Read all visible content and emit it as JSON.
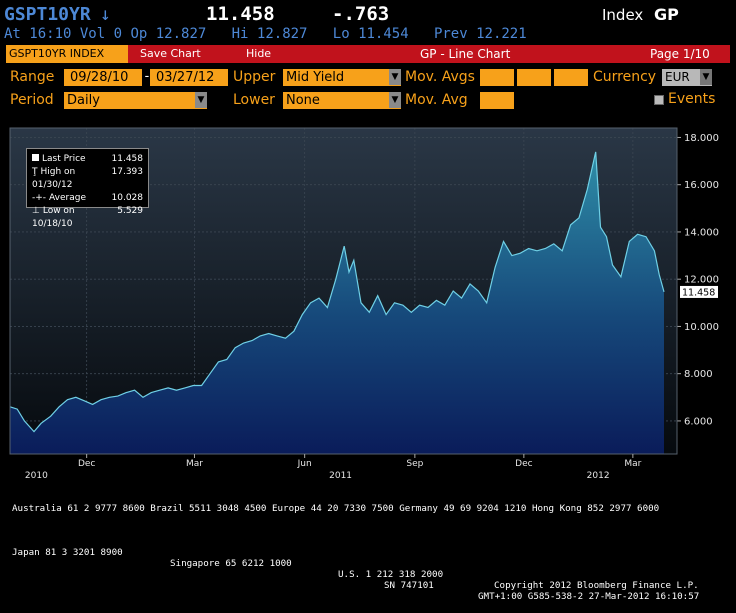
{
  "header": {
    "ticker": "GSPT10YR",
    "arrow": "↓",
    "price": "11.458",
    "change": "-.763",
    "index_label": "Index",
    "index_code": "GP",
    "at": "At 16:10",
    "vol": "Vol 0",
    "op": "Op 12.827",
    "hi": "Hi 12.827",
    "lo": "Lo 11.454",
    "prev": "Prev 12.221"
  },
  "toolbar": {
    "security": "GSPT10YR INDEX",
    "save_chart": "Save Chart",
    "hide": "Hide",
    "title": "GP - Line Chart",
    "page": "Page 1/10"
  },
  "controls": {
    "range_label": "Range",
    "range_start": "09/28/10",
    "range_sep": "-",
    "range_end": "03/27/12",
    "upper_label": "Upper",
    "upper_value": "Mid Yield",
    "mov_avgs_label": "Mov. Avgs",
    "currency_label": "Currency",
    "currency_value": "EUR",
    "period_label": "Period",
    "period_value": "Daily",
    "lower_label": "Lower",
    "lower_value": "None",
    "mov_avg_label": "Mov. Avg",
    "events_label": "Events"
  },
  "legend": {
    "last_label": "Last Price",
    "last_value": "11.458",
    "high_label": "High on 01/30/12",
    "high_value": "17.393",
    "avg_label": "Average",
    "avg_value": "10.028",
    "low_label": "Low on 10/18/10",
    "low_value": "5.529"
  },
  "footer": {
    "line1": "Australia 61 2 9777 8600 Brazil 5511 3048 4500 Europe 44 20 7330 7500 Germany 49 69 9204 1210 Hong Kong 852 2977 6000",
    "line2_left": "Japan 81 3 3201 8900",
    "line2_mid": "Singapore 65 6212 1000",
    "line2_us": "U.S. 1 212 318 2000",
    "line2_copy": "Copyright 2012 Bloomberg Finance L.P.",
    "line3_sn": "SN 747101",
    "line3_right": "GMT+1:00 G585-538-2 27-Mar-2012 16:10:57"
  },
  "colors": {
    "amber": "#f7a11a",
    "toolbar_red": "#c1121c",
    "header_blue": "#4d88d6",
    "fill_top": "#2f8ea8",
    "fill_bottom": "#0a1c5a"
  },
  "chart_data": {
    "type": "area",
    "series_name": "Last Price",
    "ylim": [
      4.6,
      18.4
    ],
    "yticks": [
      6,
      8,
      10,
      12,
      14,
      16,
      18
    ],
    "ytick_labels": [
      "6.000",
      "8.000",
      "10.000",
      "12.000",
      "14.000",
      "16.000",
      "18.000"
    ],
    "xlim": [
      "2010-09-28",
      "2012-03-27"
    ],
    "month_ticks": [
      {
        "date": "2010-12-01",
        "label": "Dec"
      },
      {
        "date": "2011-03-01",
        "label": "Mar"
      },
      {
        "date": "2011-06-01",
        "label": "Jun"
      },
      {
        "date": "2011-09-01",
        "label": "Sep"
      },
      {
        "date": "2011-12-01",
        "label": "Dec"
      },
      {
        "date": "2012-03-01",
        "label": "Mar"
      }
    ],
    "year_ticks": [
      {
        "date": "2010-10-20",
        "label": "2010"
      },
      {
        "date": "2011-07-01",
        "label": "2011"
      },
      {
        "date": "2012-02-01",
        "label": "2012"
      }
    ],
    "last_value_label": "11.458",
    "points": [
      [
        "2010-09-28",
        6.6
      ],
      [
        "2010-10-04",
        6.5
      ],
      [
        "2010-10-10",
        6.0
      ],
      [
        "2010-10-18",
        5.55
      ],
      [
        "2010-10-24",
        5.9
      ],
      [
        "2010-11-01",
        6.2
      ],
      [
        "2010-11-08",
        6.6
      ],
      [
        "2010-11-15",
        6.9
      ],
      [
        "2010-11-22",
        7.0
      ],
      [
        "2010-11-29",
        6.85
      ],
      [
        "2010-12-06",
        6.7
      ],
      [
        "2010-12-13",
        6.9
      ],
      [
        "2010-12-20",
        7.0
      ],
      [
        "2010-12-27",
        7.05
      ],
      [
        "2011-01-03",
        7.2
      ],
      [
        "2011-01-10",
        7.3
      ],
      [
        "2011-01-17",
        7.0
      ],
      [
        "2011-01-24",
        7.2
      ],
      [
        "2011-01-31",
        7.3
      ],
      [
        "2011-02-07",
        7.4
      ],
      [
        "2011-02-14",
        7.3
      ],
      [
        "2011-02-21",
        7.4
      ],
      [
        "2011-02-28",
        7.5
      ],
      [
        "2011-03-07",
        7.5
      ],
      [
        "2011-03-14",
        8.0
      ],
      [
        "2011-03-21",
        8.5
      ],
      [
        "2011-03-28",
        8.6
      ],
      [
        "2011-04-04",
        9.1
      ],
      [
        "2011-04-11",
        9.3
      ],
      [
        "2011-04-18",
        9.4
      ],
      [
        "2011-04-25",
        9.6
      ],
      [
        "2011-05-02",
        9.7
      ],
      [
        "2011-05-09",
        9.6
      ],
      [
        "2011-05-16",
        9.5
      ],
      [
        "2011-05-23",
        9.8
      ],
      [
        "2011-05-30",
        10.5
      ],
      [
        "2011-06-06",
        11.0
      ],
      [
        "2011-06-13",
        11.2
      ],
      [
        "2011-06-20",
        10.8
      ],
      [
        "2011-06-27",
        12.0
      ],
      [
        "2011-07-04",
        13.4
      ],
      [
        "2011-07-08",
        12.3
      ],
      [
        "2011-07-12",
        12.8
      ],
      [
        "2011-07-18",
        11.0
      ],
      [
        "2011-07-25",
        10.6
      ],
      [
        "2011-08-01",
        11.3
      ],
      [
        "2011-08-08",
        10.5
      ],
      [
        "2011-08-15",
        11.0
      ],
      [
        "2011-08-22",
        10.9
      ],
      [
        "2011-08-29",
        10.6
      ],
      [
        "2011-09-05",
        10.9
      ],
      [
        "2011-09-12",
        10.8
      ],
      [
        "2011-09-19",
        11.1
      ],
      [
        "2011-09-26",
        10.9
      ],
      [
        "2011-10-03",
        11.5
      ],
      [
        "2011-10-10",
        11.2
      ],
      [
        "2011-10-17",
        11.8
      ],
      [
        "2011-10-24",
        11.5
      ],
      [
        "2011-10-31",
        11.0
      ],
      [
        "2011-11-07",
        12.5
      ],
      [
        "2011-11-14",
        13.6
      ],
      [
        "2011-11-21",
        13.0
      ],
      [
        "2011-11-28",
        13.1
      ],
      [
        "2011-12-05",
        13.3
      ],
      [
        "2011-12-12",
        13.2
      ],
      [
        "2011-12-19",
        13.3
      ],
      [
        "2011-12-26",
        13.5
      ],
      [
        "2012-01-02",
        13.2
      ],
      [
        "2012-01-09",
        14.3
      ],
      [
        "2012-01-16",
        14.6
      ],
      [
        "2012-01-23",
        15.8
      ],
      [
        "2012-01-30",
        17.39
      ],
      [
        "2012-02-03",
        14.2
      ],
      [
        "2012-02-08",
        13.8
      ],
      [
        "2012-02-13",
        12.6
      ],
      [
        "2012-02-20",
        12.1
      ],
      [
        "2012-02-27",
        13.6
      ],
      [
        "2012-03-05",
        13.9
      ],
      [
        "2012-03-12",
        13.8
      ],
      [
        "2012-03-19",
        13.2
      ],
      [
        "2012-03-23",
        12.2
      ],
      [
        "2012-03-27",
        11.46
      ]
    ]
  }
}
